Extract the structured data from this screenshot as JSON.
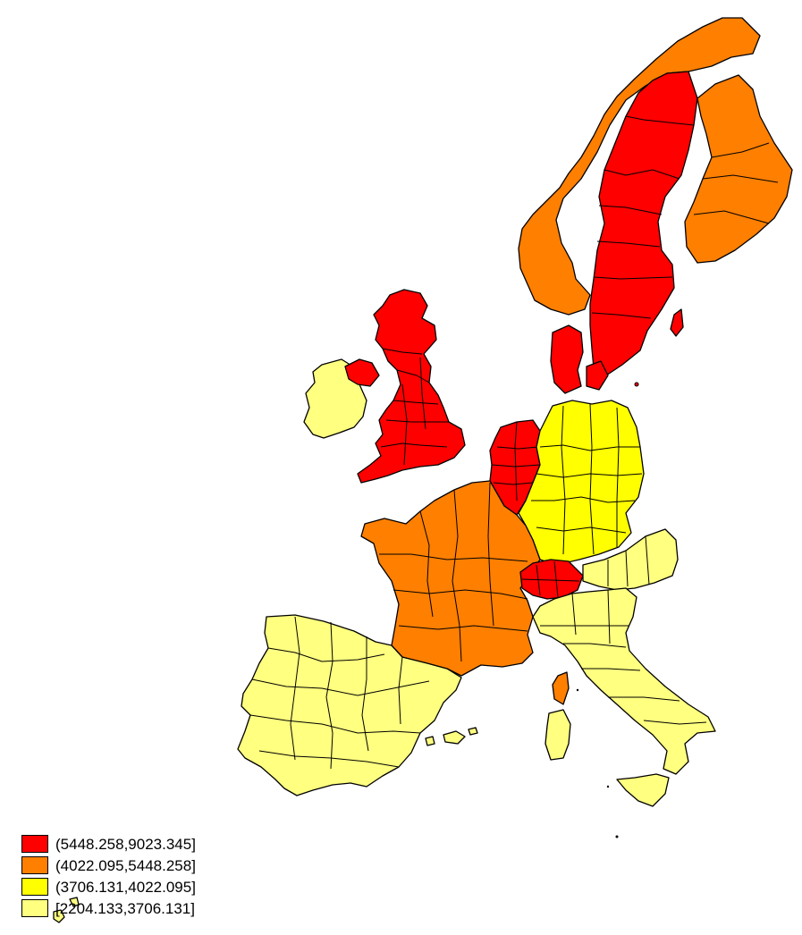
{
  "map": {
    "classes": [
      {
        "key": "c1",
        "label": "(5448.258,9023.345]",
        "color": "#ff0000"
      },
      {
        "key": "c2",
        "label": "(4022.095,5448.258]",
        "color": "#ff7f00"
      },
      {
        "key": "c3",
        "label": "(3706.131,4022.095]",
        "color": "#ffff00"
      },
      {
        "key": "c4",
        "label": "[2204.133,3706.131]",
        "color": "#ffff80"
      }
    ]
  }
}
